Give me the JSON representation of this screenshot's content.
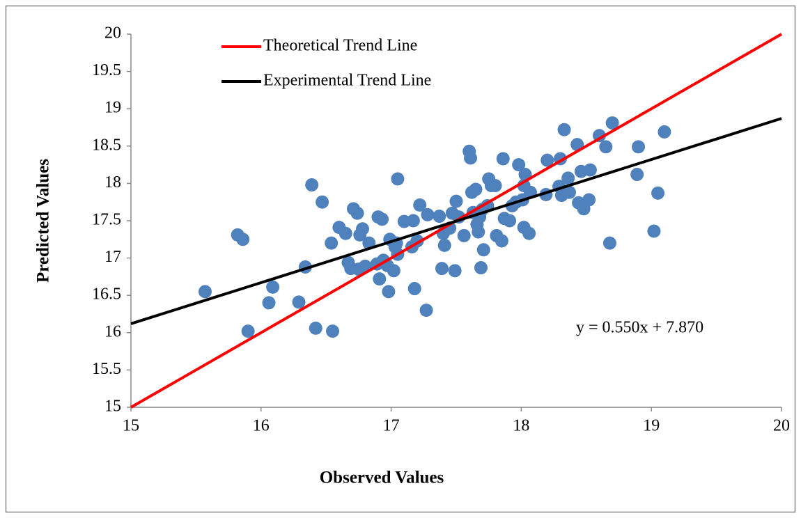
{
  "chart_data": {
    "type": "scatter",
    "xlabel": "Observed Values",
    "ylabel": "Predicted Values",
    "xlim": [
      15,
      20
    ],
    "ylim": [
      15,
      20
    ],
    "xticks": [
      15,
      16,
      17,
      18,
      19,
      20
    ],
    "yticks": [
      15,
      15.5,
      16,
      16.5,
      17,
      17.5,
      18,
      18.5,
      19,
      19.5,
      20
    ],
    "color": "#4f81bd",
    "x": [
      15.57,
      15.82,
      15.86,
      15.9,
      16.06,
      16.09,
      16.29,
      16.34,
      16.39,
      16.42,
      16.47,
      16.55,
      16.54,
      16.6,
      16.65,
      16.67,
      16.69,
      16.71,
      16.74,
      16.76,
      16.78,
      16.75,
      16.8,
      16.83,
      16.89,
      16.9,
      16.91,
      16.93,
      16.94,
      16.97,
      16.98,
      16.99,
      17.02,
      17.03,
      17.04,
      17.05,
      17.05,
      17.1,
      17.16,
      17.17,
      17.18,
      17.2,
      17.22,
      17.27,
      17.28,
      17.37,
      17.39,
      17.4,
      17.41,
      17.45,
      17.47,
      17.49,
      17.5,
      17.52,
      17.56,
      17.6,
      17.61,
      17.62,
      17.63,
      17.65,
      17.66,
      17.67,
      17.68,
      17.69,
      17.7,
      17.71,
      17.74,
      17.75,
      17.77,
      17.8,
      17.81,
      17.85,
      17.86,
      17.87,
      17.91,
      17.93,
      17.96,
      17.98,
      18.01,
      18.02,
      18.03,
      18.02,
      18.06,
      18.07,
      18.19,
      18.2,
      18.29,
      18.3,
      18.31,
      18.33,
      18.36,
      18.37,
      18.43,
      18.44,
      18.46,
      18.48,
      18.52,
      18.53,
      18.6,
      18.65,
      18.68,
      18.7,
      18.89,
      18.9,
      19.02,
      19.05,
      19.1
    ],
    "values": [
      16.55,
      17.31,
      17.25,
      16.02,
      16.4,
      16.61,
      16.41,
      16.88,
      17.98,
      16.06,
      17.75,
      16.02,
      17.2,
      17.41,
      17.33,
      16.94,
      16.86,
      17.66,
      17.6,
      17.31,
      17.39,
      16.85,
      16.89,
      17.2,
      16.92,
      17.55,
      16.72,
      17.52,
      16.97,
      16.9,
      16.55,
      17.25,
      16.83,
      17.15,
      17.2,
      17.05,
      18.06,
      17.49,
      17.15,
      17.5,
      16.59,
      17.23,
      17.71,
      16.3,
      17.58,
      17.56,
      16.86,
      17.33,
      17.17,
      17.4,
      17.6,
      16.83,
      17.76,
      17.55,
      17.3,
      18.43,
      18.34,
      17.88,
      17.61,
      17.92,
      17.45,
      17.35,
      17.55,
      16.87,
      17.65,
      17.11,
      17.7,
      18.06,
      17.97,
      17.97,
      17.3,
      17.23,
      18.33,
      17.53,
      17.5,
      17.7,
      17.75,
      18.25,
      17.78,
      17.41,
      18.12,
      17.97,
      17.33,
      17.88,
      17.85,
      18.31,
      17.96,
      18.33,
      17.84,
      18.72,
      18.07,
      17.88,
      18.52,
      17.74,
      18.16,
      17.66,
      17.78,
      18.18,
      18.64,
      18.49,
      17.2,
      18.81,
      18.12,
      18.49,
      17.36,
      17.87,
      18.69
    ],
    "lines": [
      {
        "name": "Theoretical Trend Line",
        "color": "#ff0000",
        "x": [
          15,
          20
        ],
        "values": [
          15,
          20
        ]
      },
      {
        "name": "Experimental Trend Line",
        "color": "#000000",
        "x": [
          15,
          20
        ],
        "values": [
          16.12,
          18.87
        ]
      }
    ],
    "annotation": "y = 0.550x + 7.870",
    "legend": "upper left"
  }
}
